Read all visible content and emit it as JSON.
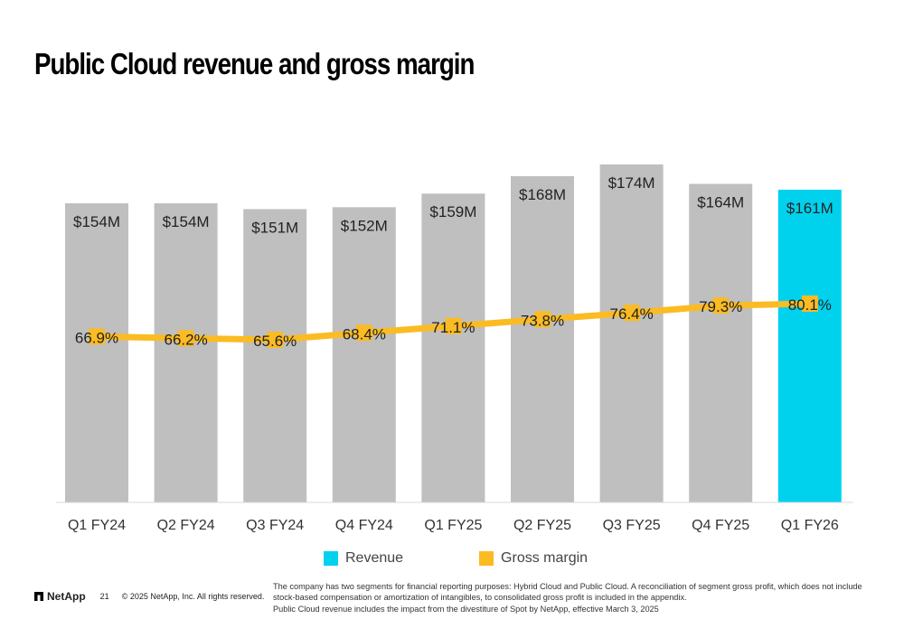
{
  "title": "Public Cloud revenue and gross margin",
  "chart_data": {
    "type": "bar",
    "title": "Public Cloud revenue and gross margin",
    "categories": [
      "Q1 FY24",
      "Q2 FY24",
      "Q3 FY24",
      "Q4 FY24",
      "Q1 FY25",
      "Q2 FY25",
      "Q3 FY25",
      "Q4 FY25",
      "Q1 FY26"
    ],
    "series": [
      {
        "name": "Revenue",
        "kind": "bar",
        "unit": "$M",
        "values": [
          154,
          154,
          151,
          152,
          159,
          168,
          174,
          164,
          161
        ],
        "labels": [
          "$154M",
          "$154M",
          "$151M",
          "$152M",
          "$159M",
          "$168M",
          "$174M",
          "$164M",
          "$161M"
        ]
      },
      {
        "name": "Gross margin",
        "kind": "line",
        "unit": "%",
        "values": [
          66.9,
          66.2,
          65.6,
          68.4,
          71.1,
          73.8,
          76.4,
          79.3,
          80.1
        ],
        "labels": [
          "66.9%",
          "66.2%",
          "65.6%",
          "68.4%",
          "71.1%",
          "73.8%",
          "76.4%",
          "79.3%",
          "80.1%"
        ]
      }
    ],
    "highlight_index": 8,
    "ylim": [
      0,
      180
    ],
    "margin_axis_range": [
      0,
      100
    ],
    "grid": false,
    "legend_position": "bottom",
    "colors": {
      "bar": "#bfbfbf",
      "highlight": "#00d2ee",
      "line": "#fbbb22",
      "baseline": "#d9d9d9"
    }
  },
  "legend": [
    {
      "label": "Revenue",
      "color": "#00d2ee"
    },
    {
      "label": "Gross margin",
      "color": "#fbbb22"
    }
  ],
  "footer": {
    "logo_text": "NetApp",
    "logo_icon": "netapp-logo-icon",
    "page_number": "21",
    "copyright": "© 2025 NetApp, Inc. All rights reserved.",
    "note_line1": "The company has two segments for financial reporting purposes: Hybrid Cloud and Public Cloud. A reconciliation of segment gross profit, which does not include stock-based compensation or amortization of intangibles, to consolidated gross profit is included in the appendix.",
    "note_line2": "Public Cloud revenue includes the impact from the divestiture of Spot by NetApp, effective March 3, 2025"
  }
}
